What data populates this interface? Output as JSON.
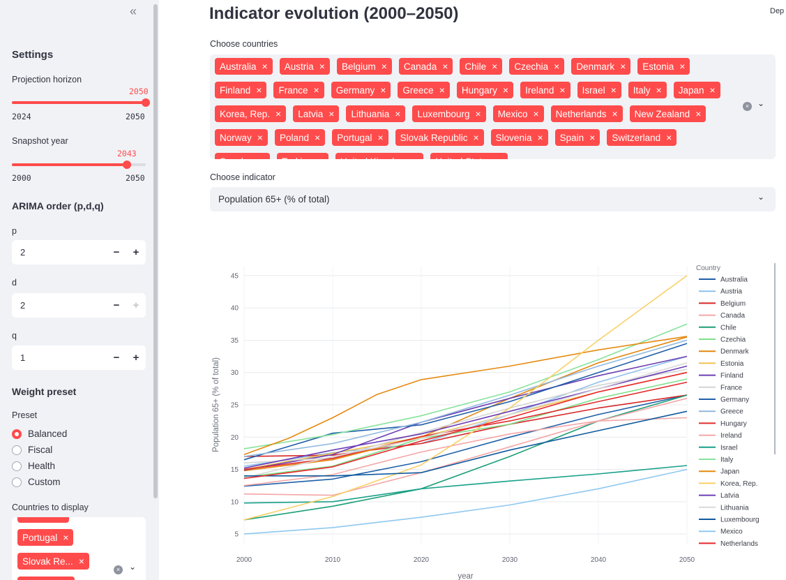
{
  "sidebar": {
    "collapse_icon": "«",
    "settings_title": "Settings",
    "projection_horizon": {
      "label": "Projection horizon",
      "value": "2050",
      "min": "2024",
      "max": "2050",
      "fraction": 1.0
    },
    "snapshot_year": {
      "label": "Snapshot year",
      "value": "2043",
      "min": "2000",
      "max": "2050",
      "fraction": 0.86
    },
    "arima_title": "ARIMA order (p,d,q)",
    "arima": [
      {
        "label": "p",
        "value": "2",
        "minus": "−",
        "plus": "+"
      },
      {
        "label": "d",
        "value": "2",
        "minus": "−",
        "plus": "+"
      },
      {
        "label": "q",
        "value": "1",
        "minus": "−",
        "plus": "+"
      }
    ],
    "weight_title": "Weight preset",
    "preset_label": "Preset",
    "presets": [
      "Balanced",
      "Fiscal",
      "Health",
      "Custom"
    ],
    "selected_preset": "Balanced",
    "display_label": "Countries to display",
    "display_tags": [
      "Portugal",
      "Slovak Re..."
    ],
    "clear_icon": "×",
    "chevron_icon": "⌄"
  },
  "main": {
    "title": "Indicator evolution (2000–2050)",
    "deploy": "Dep",
    "countries_label": "Choose countries",
    "countries": [
      "Australia",
      "Austria",
      "Belgium",
      "Canada",
      "Chile",
      "Czechia",
      "Denmark",
      "Estonia",
      "Finland",
      "France",
      "Germany",
      "Greece",
      "Hungary",
      "Ireland",
      "Israel",
      "Italy",
      "Japan",
      "Korea, Rep.",
      "Latvia",
      "Lithuania",
      "Luxembourg",
      "Mexico",
      "Netherlands",
      "New Zealand",
      "Norway",
      "Poland",
      "Portugal",
      "Slovak Republic",
      "Slovenia",
      "Spain",
      "Switzerland",
      "Sweden",
      "Turkiye",
      "United Kingdom",
      "United States"
    ],
    "tag_remove": "×",
    "indicator_label": "Choose indicator",
    "indicator_value": "Population 65+ (% of total)"
  },
  "colors": {
    "accent": "#ff4b4b",
    "sidebar_bg": "#f0f2f6"
  },
  "chart_data": {
    "type": "line",
    "xlabel": "year",
    "ylabel": "Population 65+ (% of total)",
    "xlim": [
      2000,
      2050
    ],
    "ylim": [
      3.5,
      46.5
    ],
    "xticks": [
      2000,
      2010,
      2020,
      2030,
      2040,
      2050
    ],
    "yticks": [
      5,
      10,
      15,
      20,
      25,
      30,
      35,
      40,
      45
    ],
    "legend_title": "Country",
    "legend_position": "right",
    "series": [
      {
        "name": "Australia",
        "color": "#1f5fa8",
        "points": [
          [
            2000,
            12.4
          ],
          [
            2010,
            13.5
          ],
          [
            2020,
            16.2
          ],
          [
            2030,
            20.0
          ],
          [
            2040,
            23.5
          ],
          [
            2050,
            26.5
          ]
        ]
      },
      {
        "name": "Austria",
        "color": "#8ec0ea",
        "points": [
          [
            2000,
            15.5
          ],
          [
            2010,
            17.6
          ],
          [
            2020,
            19.0
          ],
          [
            2030,
            23.5
          ],
          [
            2040,
            28.5
          ],
          [
            2050,
            32.5
          ]
        ]
      },
      {
        "name": "Belgium",
        "color": "#d62728",
        "points": [
          [
            2000,
            17.0
          ],
          [
            2010,
            17.2
          ],
          [
            2020,
            19.0
          ],
          [
            2030,
            22.0
          ],
          [
            2040,
            24.5
          ],
          [
            2050,
            26.5
          ]
        ]
      },
      {
        "name": "Canada",
        "color": "#f4a6a6",
        "points": [
          [
            2000,
            12.5
          ],
          [
            2010,
            14.2
          ],
          [
            2020,
            17.7
          ],
          [
            2030,
            20.5
          ],
          [
            2040,
            22.5
          ],
          [
            2050,
            23.0
          ]
        ]
      },
      {
        "name": "Chile",
        "color": "#1b9e77",
        "points": [
          [
            2000,
            7.2
          ],
          [
            2010,
            9.3
          ],
          [
            2020,
            12.0
          ],
          [
            2030,
            17.0
          ],
          [
            2040,
            22.5
          ],
          [
            2050,
            26.5
          ]
        ]
      },
      {
        "name": "Czechia",
        "color": "#7ee08a",
        "points": [
          [
            2000,
            13.8
          ],
          [
            2010,
            15.5
          ],
          [
            2020,
            19.8
          ],
          [
            2030,
            22.0
          ],
          [
            2040,
            26.0
          ],
          [
            2050,
            29.0
          ]
        ]
      },
      {
        "name": "Denmark",
        "color": "#e3870e",
        "points": [
          [
            2000,
            14.8
          ],
          [
            2010,
            16.5
          ],
          [
            2020,
            20.0
          ],
          [
            2030,
            26.0
          ],
          [
            2040,
            31.5
          ],
          [
            2050,
            35.5
          ]
        ]
      },
      {
        "name": "Estonia",
        "color": "#f2c14e",
        "points": [
          [
            2000,
            15.0
          ],
          [
            2010,
            17.5
          ],
          [
            2020,
            20.0
          ],
          [
            2030,
            23.5
          ],
          [
            2040,
            27.0
          ],
          [
            2050,
            30.0
          ]
        ]
      },
      {
        "name": "Finland",
        "color": "#6b3fb3",
        "points": [
          [
            2000,
            14.9
          ],
          [
            2010,
            17.3
          ],
          [
            2020,
            22.3
          ],
          [
            2030,
            26.0
          ],
          [
            2040,
            29.5
          ],
          [
            2050,
            32.5
          ]
        ]
      },
      {
        "name": "France",
        "color": "#d4d4d4",
        "points": [
          [
            2000,
            16.0
          ],
          [
            2010,
            16.8
          ],
          [
            2020,
            20.7
          ],
          [
            2030,
            24.5
          ],
          [
            2040,
            28.0
          ],
          [
            2050,
            30.5
          ]
        ]
      },
      {
        "name": "Germany",
        "color": "#1f5fa8",
        "points": [
          [
            2000,
            16.5
          ],
          [
            2010,
            20.6
          ],
          [
            2020,
            21.9
          ],
          [
            2030,
            25.5
          ],
          [
            2040,
            30.0
          ],
          [
            2050,
            34.5
          ]
        ]
      },
      {
        "name": "Greece",
        "color": "#8fb8de",
        "points": [
          [
            2000,
            17.0
          ],
          [
            2010,
            19.0
          ],
          [
            2020,
            22.3
          ],
          [
            2030,
            26.5
          ],
          [
            2040,
            31.0
          ],
          [
            2050,
            35.0
          ]
        ]
      },
      {
        "name": "Hungary",
        "color": "#e02b2b",
        "points": [
          [
            2000,
            15.0
          ],
          [
            2010,
            16.7
          ],
          [
            2020,
            20.1
          ],
          [
            2030,
            22.5
          ],
          [
            2040,
            25.5
          ],
          [
            2050,
            28.5
          ]
        ]
      },
      {
        "name": "Ireland",
        "color": "#f4a6a6",
        "points": [
          [
            2000,
            11.2
          ],
          [
            2010,
            11.0
          ],
          [
            2020,
            14.5
          ],
          [
            2030,
            18.5
          ],
          [
            2040,
            22.5
          ],
          [
            2050,
            26.0
          ]
        ]
      },
      {
        "name": "Israel",
        "color": "#17a089",
        "points": [
          [
            2000,
            9.8
          ],
          [
            2010,
            10.0
          ],
          [
            2020,
            12.0
          ],
          [
            2030,
            13.2
          ],
          [
            2040,
            14.3
          ],
          [
            2050,
            15.6
          ]
        ]
      },
      {
        "name": "Italy",
        "color": "#86e29b",
        "points": [
          [
            2000,
            18.2
          ],
          [
            2010,
            20.4
          ],
          [
            2020,
            23.3
          ],
          [
            2030,
            27.0
          ],
          [
            2040,
            32.0
          ],
          [
            2050,
            37.5
          ]
        ]
      },
      {
        "name": "Japan",
        "color": "#e58a0e",
        "points": [
          [
            2000,
            17.3
          ],
          [
            2005,
            19.8
          ],
          [
            2010,
            23.0
          ],
          [
            2015,
            26.6
          ],
          [
            2020,
            28.9
          ],
          [
            2030,
            31.0
          ],
          [
            2040,
            33.5
          ],
          [
            2050,
            35.6
          ]
        ]
      },
      {
        "name": "Korea, Rep.",
        "color": "#f8d065",
        "points": [
          [
            2000,
            7.2
          ],
          [
            2010,
            10.8
          ],
          [
            2020,
            15.7
          ],
          [
            2030,
            24.5
          ],
          [
            2040,
            35.0
          ],
          [
            2050,
            45.0
          ]
        ]
      },
      {
        "name": "Latvia",
        "color": "#6a3db5",
        "points": [
          [
            2000,
            15.2
          ],
          [
            2010,
            18.0
          ],
          [
            2020,
            20.5
          ],
          [
            2030,
            24.0
          ],
          [
            2040,
            27.5
          ],
          [
            2050,
            31.0
          ]
        ]
      },
      {
        "name": "Lithuania",
        "color": "#d9d9d9",
        "points": [
          [
            2000,
            13.7
          ],
          [
            2010,
            17.0
          ],
          [
            2020,
            19.8
          ],
          [
            2030,
            23.5
          ],
          [
            2040,
            27.5
          ],
          [
            2050,
            31.5
          ]
        ]
      },
      {
        "name": "Luxembourg",
        "color": "#0f5a9e",
        "points": [
          [
            2000,
            14.0
          ],
          [
            2010,
            14.0
          ],
          [
            2020,
            14.5
          ],
          [
            2030,
            18.0
          ],
          [
            2040,
            21.0
          ],
          [
            2050,
            24.0
          ]
        ]
      },
      {
        "name": "Mexico",
        "color": "#8ec8f0",
        "points": [
          [
            2000,
            5.0
          ],
          [
            2010,
            6.0
          ],
          [
            2020,
            7.6
          ],
          [
            2030,
            9.5
          ],
          [
            2040,
            12.0
          ],
          [
            2050,
            15.0
          ]
        ]
      },
      {
        "name": "Netherlands",
        "color": "#e8262c",
        "points": [
          [
            2000,
            13.6
          ],
          [
            2010,
            15.4
          ],
          [
            2020,
            19.4
          ],
          [
            2030,
            23.0
          ],
          [
            2040,
            27.0
          ],
          [
            2050,
            30.0
          ]
        ]
      }
    ]
  }
}
